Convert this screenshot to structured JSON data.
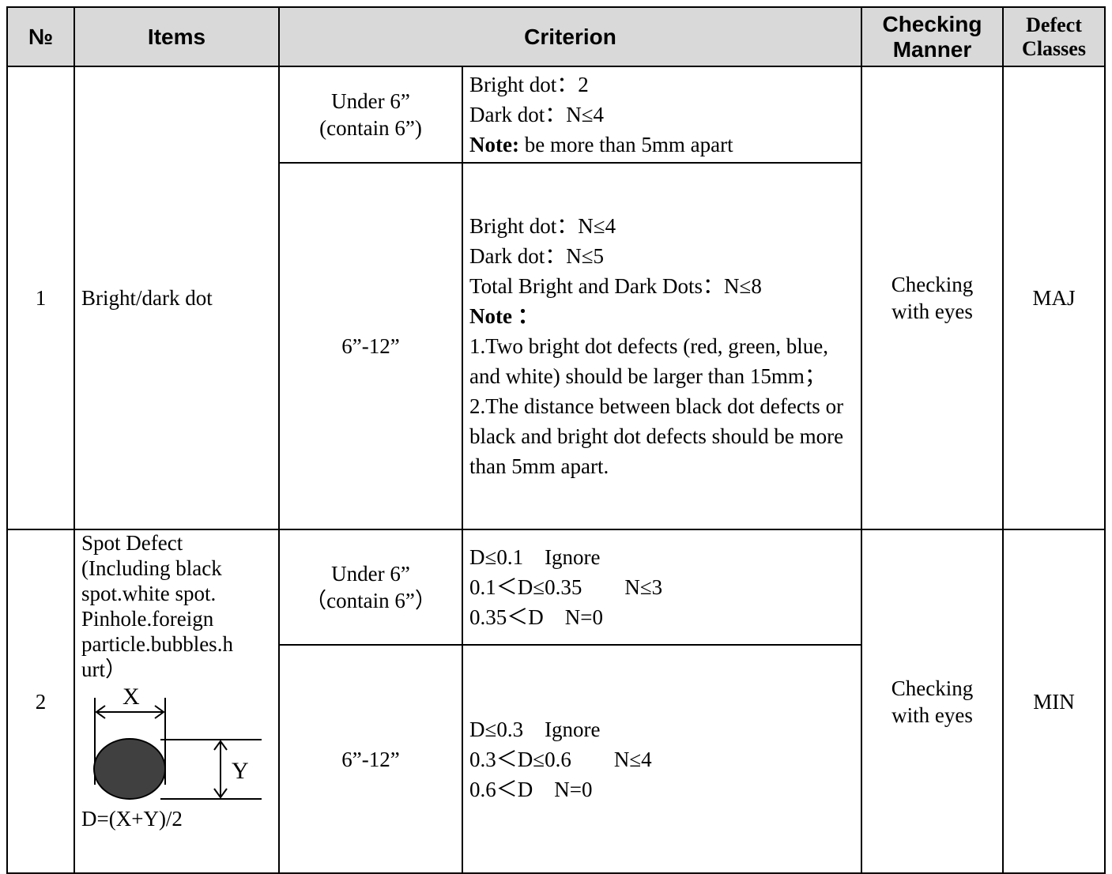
{
  "header": {
    "no": "№",
    "items": "Items",
    "criterion": "Criterion",
    "checking_manner": [
      "Checking",
      "Manner"
    ],
    "defect_classes": [
      "Defect",
      "Classes"
    ]
  },
  "rows": [
    {
      "no": "1",
      "item": [
        "Bright/dark dot"
      ],
      "checking": [
        "Checking",
        "with eyes"
      ],
      "defect": "MAJ",
      "criteria": [
        {
          "size": [
            "Under 6”",
            "(contain 6”)"
          ],
          "lines": [
            "Bright dot：2",
            "Dark dot：N≤4",
            {
              "bold": "Note:",
              "text": " be more than 5mm apart"
            }
          ]
        },
        {
          "size": [
            "6”-12”"
          ],
          "lines": [
            "Bright dot：N≤4",
            "Dark dot：N≤5",
            "Total Bright and Dark Dots：N≤8",
            {
              "bold": "Note ："
            },
            "1.Two bright dot defects (red, green, blue, and white) should be larger than 15mm；",
            "2.The distance between black dot defects or black and bright dot defects should be more than 5mm apart."
          ]
        }
      ]
    },
    {
      "no": "2",
      "item": [
        "Spot Defect",
        "(Including black",
        "spot.white spot.",
        "Pinhole.foreign",
        "particle.bubbles.h",
        "urt）"
      ],
      "diagram": {
        "x_label": "X",
        "y_label": "Y",
        "formula": "D=(X+Y)/2"
      },
      "checking": [
        "Checking",
        "with eyes"
      ],
      "defect": "MIN",
      "criteria": [
        {
          "size": [
            "Under 6”",
            "（contain 6”）"
          ],
          "lines": [
            "D≤0.1　Ignore",
            "0.1＜D≤0.35　　N≤3",
            "0.35＜D　N=0"
          ]
        },
        {
          "size": [
            "6”-12”"
          ],
          "lines": [
            "D≤0.3　Ignore",
            "0.3＜D≤0.6　　N≤4",
            "0.6＜D　N=0"
          ]
        }
      ]
    }
  ]
}
